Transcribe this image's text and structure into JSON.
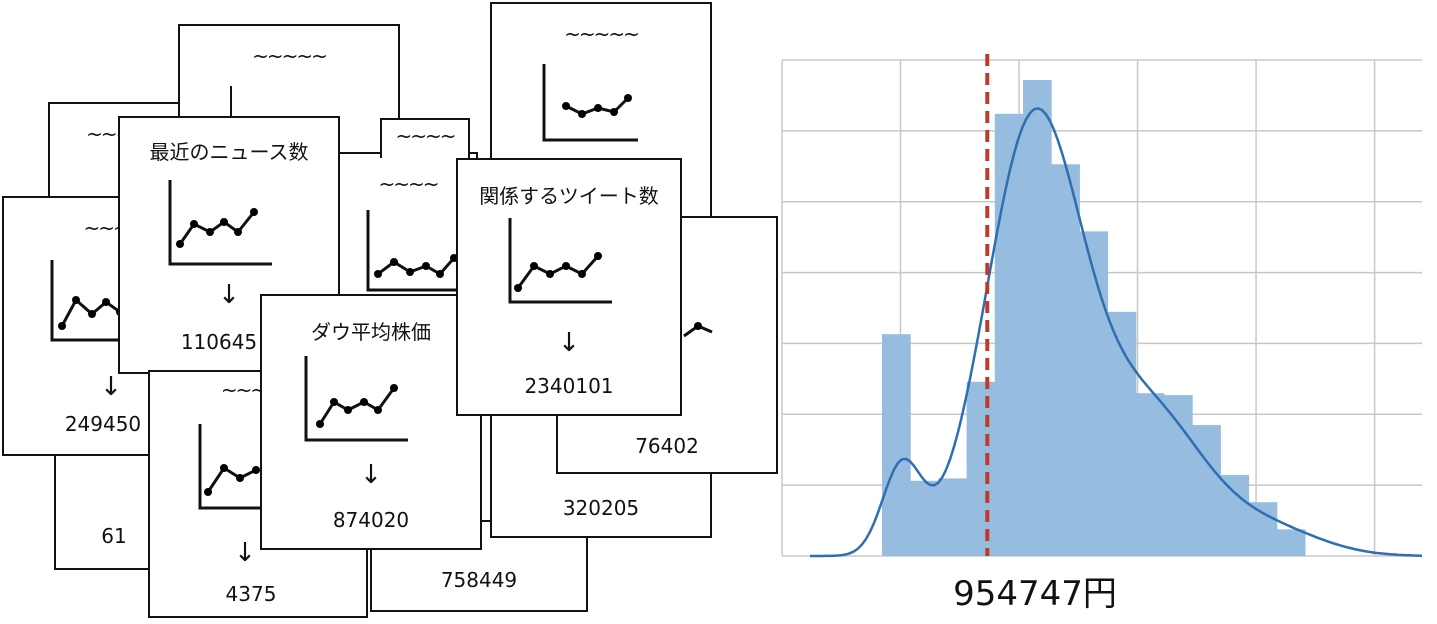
{
  "cards": [
    {
      "id": "c-back-61",
      "title": "",
      "value": "61"
    },
    {
      "id": "c-back-758449",
      "title": "",
      "value": "758449"
    },
    {
      "id": "c-back-a",
      "title": "~~~~~",
      "value": ""
    },
    {
      "id": "c-back-b",
      "title": "~~~~~",
      "value": ""
    },
    {
      "id": "c-back-c",
      "title": "~~~~~",
      "value": ""
    },
    {
      "id": "c-back-320205",
      "title": "",
      "value": "320205"
    },
    {
      "id": "c-back-76402",
      "title": "",
      "value": "76402"
    },
    {
      "id": "c-back-d",
      "title": "~~~~",
      "value": ""
    },
    {
      "id": "c-249450",
      "title": "~~~~",
      "value": "249450"
    },
    {
      "id": "c-news",
      "title": "最近のニュース数",
      "value": "110645"
    },
    {
      "id": "c-4375",
      "title": "~~~",
      "value": "4375"
    },
    {
      "id": "c-back-e",
      "title": "~~~~",
      "value": ""
    },
    {
      "id": "c-dow",
      "title": "ダウ平均株価",
      "value": "874020"
    },
    {
      "id": "c-tweet",
      "title": "関係するツイート数",
      "value": "2340101"
    }
  ],
  "arrow_symbol": "↓",
  "histogram": {
    "caption": "954747円",
    "bin_heights": [
      0.466,
      0.158,
      0.163,
      0.366,
      0.929,
      1.0,
      0.823,
      0.682,
      0.513,
      0.342,
      0.338,
      0.275,
      0.17,
      0.113,
      0.056
    ],
    "mean_bin_fraction": 0.23,
    "colors": {
      "bar": "#96bcdf",
      "curve": "#2f6eb0",
      "mean": "#c0392b",
      "grid": "#c8c8c8"
    }
  }
}
